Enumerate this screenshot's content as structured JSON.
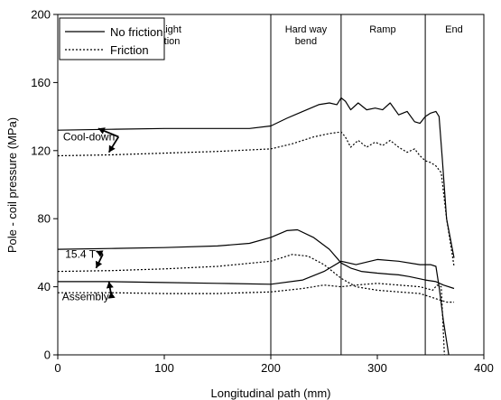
{
  "chart_data": {
    "type": "line",
    "xlabel": "Longitudinal path (mm)",
    "ylabel": "Pole - coil pressure (MPa)",
    "xlim": [
      0,
      400
    ],
    "ylim": [
      0,
      200
    ],
    "x_ticks": [
      0,
      100,
      200,
      300,
      400
    ],
    "y_ticks": [
      0,
      40,
      80,
      120,
      160,
      200
    ],
    "grid": false,
    "legend": {
      "position": "top-left",
      "entries": [
        {
          "label": "No friction",
          "style": "solid"
        },
        {
          "label": "Friction",
          "style": "dotted"
        }
      ]
    },
    "section_dividers": [
      200,
      266,
      345
    ],
    "section_labels": [
      {
        "text": [
          "Straight",
          "section"
        ],
        "x": 100
      },
      {
        "text": [
          "Hard way",
          "bend"
        ],
        "x": 233
      },
      {
        "text": [
          "Ramp"
        ],
        "x": 305
      },
      {
        "text": [
          "End"
        ],
        "x": 372
      }
    ],
    "annotations": [
      {
        "text": "Cool-down",
        "x": 5,
        "y": 126,
        "arrows_to": [
          [
            38,
            133
          ],
          [
            48,
            119
          ]
        ]
      },
      {
        "text": "15.4 T",
        "x": 7,
        "y": 57,
        "arrows_to": [
          [
            36,
            61
          ],
          [
            36,
            51
          ]
        ]
      },
      {
        "text": "Assembly",
        "x": 4,
        "y": 32,
        "arrows_to": [
          [
            48,
            43
          ],
          [
            50,
            37
          ]
        ]
      }
    ],
    "series": [
      {
        "name": "No friction",
        "group": "Cool-down",
        "style": "solid",
        "x": [
          0,
          50,
          100,
          150,
          180,
          200,
          215,
          230,
          245,
          255,
          262,
          266,
          270,
          275,
          282,
          290,
          298,
          305,
          312,
          320,
          328,
          335,
          340,
          345,
          350,
          355,
          358,
          361,
          365,
          372
        ],
        "y": [
          132,
          132.5,
          133,
          133,
          133,
          134.5,
          139,
          143,
          147,
          148,
          147,
          151,
          149,
          144,
          148,
          144,
          145,
          144,
          148,
          141,
          143,
          137,
          136,
          140,
          142,
          143,
          140,
          115,
          80,
          57
        ]
      },
      {
        "name": "Friction",
        "group": "Cool-down",
        "style": "dotted",
        "x": [
          0,
          50,
          100,
          150,
          200,
          220,
          240,
          255,
          266,
          270,
          275,
          282,
          290,
          298,
          305,
          312,
          320,
          328,
          335,
          340,
          345,
          350,
          355,
          360,
          365,
          372
        ],
        "y": [
          117,
          117.5,
          118.5,
          119.5,
          121,
          124,
          128,
          130,
          131,
          128,
          122,
          126,
          122,
          125,
          123,
          126,
          122,
          119,
          121,
          117,
          114,
          113,
          111,
          107,
          80,
          52
        ]
      },
      {
        "name": "No friction",
        "group": "15.4 T",
        "style": "solid",
        "x": [
          0,
          50,
          100,
          150,
          180,
          200,
          215,
          225,
          240,
          255,
          266,
          275,
          285,
          300,
          310,
          320,
          330,
          345,
          355,
          362,
          372
        ],
        "y": [
          62,
          62.5,
          63,
          64,
          65.5,
          69,
          73,
          73.5,
          69,
          62,
          54,
          51,
          49,
          48,
          47.5,
          47,
          46,
          44,
          43,
          41,
          39
        ]
      },
      {
        "name": "Friction",
        "group": "15.4 T",
        "style": "dotted",
        "x": [
          0,
          50,
          100,
          150,
          200,
          220,
          235,
          250,
          266,
          280,
          300,
          320,
          340,
          355,
          365,
          372
        ],
        "y": [
          49,
          49.5,
          50.5,
          52,
          55,
          59,
          58,
          53,
          45,
          40,
          38,
          37,
          36,
          33,
          31,
          31
        ]
      },
      {
        "name": "No friction",
        "group": "Assembly",
        "style": "solid",
        "x": [
          0,
          50,
          100,
          150,
          200,
          230,
          250,
          266,
          280,
          300,
          320,
          340,
          350,
          355,
          358,
          362,
          367
        ],
        "y": [
          43,
          43,
          42.5,
          42,
          41.5,
          44,
          49,
          55,
          53,
          56,
          55,
          53,
          53,
          52,
          40,
          20,
          0
        ]
      },
      {
        "name": "Friction",
        "group": "Assembly",
        "style": "dotted",
        "x": [
          0,
          50,
          100,
          150,
          200,
          230,
          250,
          266,
          280,
          300,
          320,
          340,
          352,
          356,
          360,
          363
        ],
        "y": [
          36.5,
          36.5,
          36,
          36,
          37,
          39,
          41,
          40,
          41,
          42,
          41,
          40,
          38,
          41,
          40,
          0
        ]
      }
    ]
  }
}
